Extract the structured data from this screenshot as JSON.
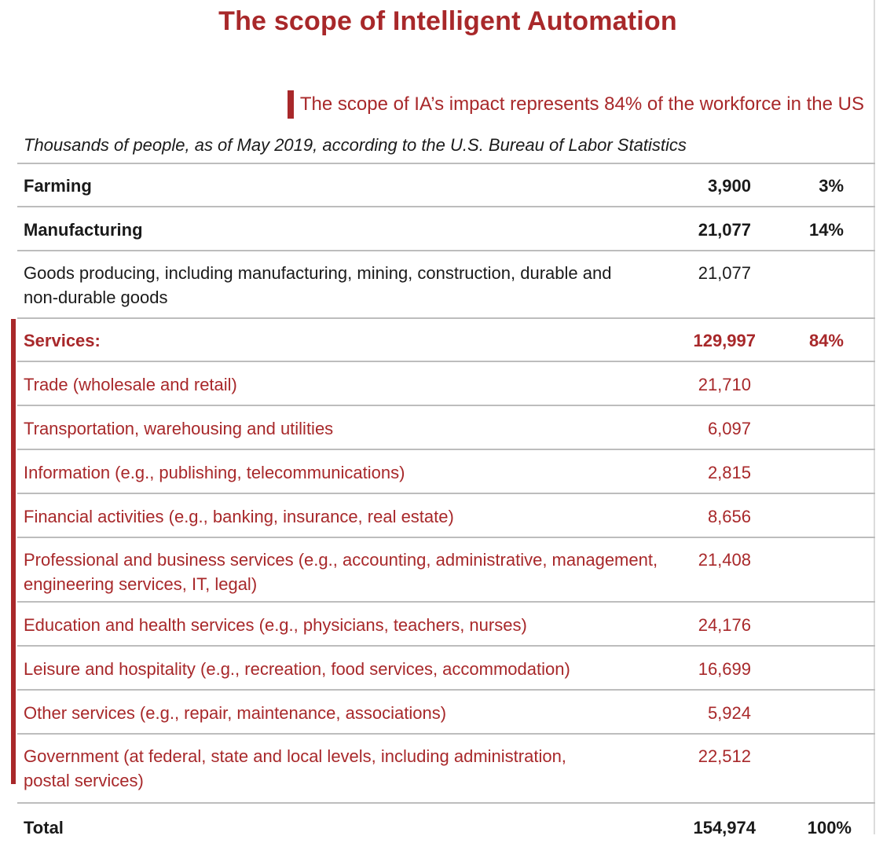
{
  "title": "The scope of Intelligent Automation",
  "subtitle": "The scope of IA’s impact represents 84% of the workforce in the US",
  "note": "Thousands of people, as of May 2019, according to the U.S. Bureau of Labor Statistics",
  "colors": {
    "accent": "#a8282a",
    "rule": "#bdbdbd",
    "text": "#1a1a1a"
  },
  "rows": [
    {
      "label": "Farming",
      "value": "3,900",
      "pct": "3%"
    },
    {
      "label": "Manufacturing",
      "value": "21,077",
      "pct": "14%"
    },
    {
      "label": "Goods producing, including manufacturing, mining, construction, durable and non-durable goods",
      "value": "21,077",
      "pct": ""
    },
    {
      "label": "Services:",
      "value": "129,997",
      "pct": "84%"
    },
    {
      "label": "Trade (wholesale and retail)",
      "value": "21,710",
      "pct": ""
    },
    {
      "label": "Transportation, warehousing and utilities",
      "value": "6,097",
      "pct": ""
    },
    {
      "label": "Information (e.g., publishing, telecommunications)",
      "value": "2,815",
      "pct": ""
    },
    {
      "label": "Financial activities (e.g., banking, insurance, real estate)",
      "value": "8,656",
      "pct": ""
    },
    {
      "label": "Professional and business services (e.g., accounting, administrative, management, engineering services, IT, legal)",
      "value": "21,408",
      "pct": ""
    },
    {
      "label": "Education and health services (e.g., physicians, teachers, nurses)",
      "value": "24,176",
      "pct": ""
    },
    {
      "label": "Leisure and hospitality (e.g., recreation, food services, accommodation)",
      "value": "16,699",
      "pct": ""
    },
    {
      "label": "Other services (e.g., repair, maintenance, associations)",
      "value": "5,924",
      "pct": ""
    },
    {
      "label": "Government (at federal, state and local levels, including administration, postal services)",
      "value": "22,512",
      "pct": ""
    },
    {
      "label": "Total",
      "value": "154,974",
      "pct": "100%"
    }
  ]
}
